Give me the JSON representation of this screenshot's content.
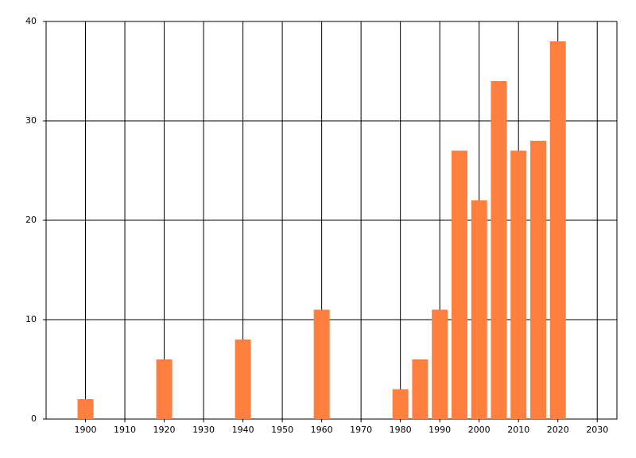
{
  "chart_data": {
    "type": "bar",
    "x": [
      1900,
      1920,
      1940,
      1960,
      1980,
      1985,
      1990,
      1995,
      2000,
      2005,
      2010,
      2015,
      2020
    ],
    "values": [
      2,
      6,
      8,
      11,
      3,
      6,
      11,
      27,
      22,
      34,
      27,
      28,
      38
    ],
    "color": "#ff7f3f",
    "xlim": [
      1890,
      2035
    ],
    "xticks": [
      1900,
      1910,
      1920,
      1930,
      1940,
      1950,
      1960,
      1970,
      1980,
      1990,
      2000,
      2010,
      2020,
      2030
    ],
    "ylim": [
      0,
      40
    ],
    "yticks": [
      0,
      10,
      20,
      30,
      40
    ],
    "grid": true
  }
}
